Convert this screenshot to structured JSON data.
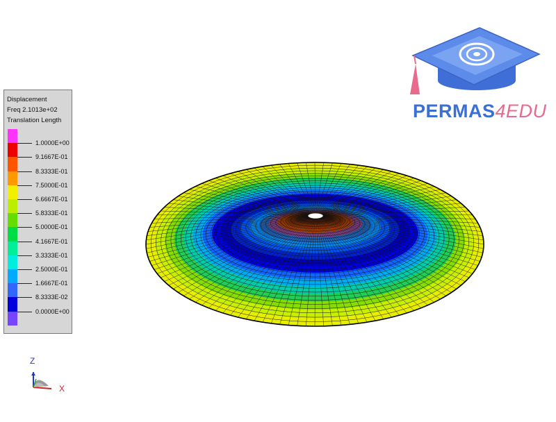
{
  "legend": {
    "title_lines": [
      "Displacement",
      "Freq 2.1013e+02",
      "Translation Length"
    ],
    "labels": [
      "1.0000E+00",
      "9.1667E-01",
      "8.3333E-01",
      "7.5000E-01",
      "6.6667E-01",
      "5.8333E-01",
      "5.0000E-01",
      "4.1667E-01",
      "3.3333E-01",
      "2.5000E-01",
      "1.6667E-01",
      "8.3333E-02",
      "0.0000E+00"
    ],
    "colors": [
      "#ff33ff",
      "#ee0000",
      "#ff5500",
      "#ff9900",
      "#f2f000",
      "#bbee00",
      "#66dd00",
      "#00dd44",
      "#00ee99",
      "#00eedd",
      "#00aaff",
      "#3366ff",
      "#0000dd",
      "#7744ff"
    ]
  },
  "logo": {
    "brand": "PERMAS",
    "suffix": "4EDU",
    "primary_color": "#3a6fd6",
    "accent_color": "#e86a8c"
  },
  "triad": {
    "z_label": "Z",
    "x_label": "X"
  },
  "result_plot": {
    "view": "isometric mode shape",
    "mesh": "disc with central hole"
  }
}
